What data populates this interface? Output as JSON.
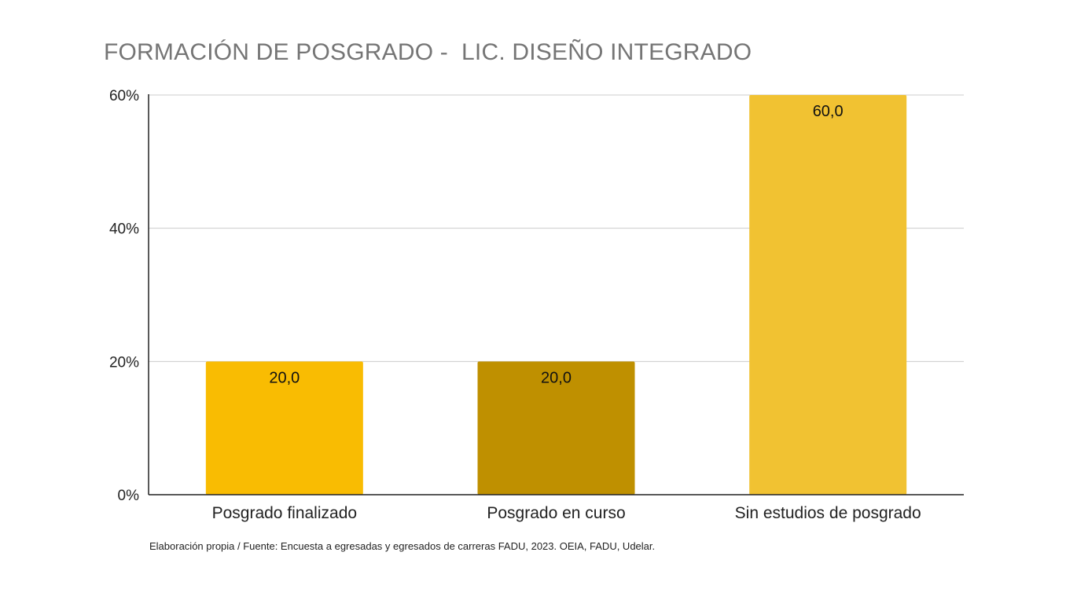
{
  "chart_data": {
    "type": "bar",
    "title": "FORMACIÓN DE POSGRADO -  LIC. DISEÑO INTEGRADO",
    "xlabel": "",
    "ylabel": "",
    "categories": [
      "Posgrado finalizado",
      "Posgrado en curso",
      "Sin estudios de posgrado"
    ],
    "values": [
      20.0,
      20.0,
      60.0
    ],
    "value_labels": [
      "20,0",
      "20,0",
      "60,0"
    ],
    "bar_colors": [
      "#F9BC02",
      "#BF9000",
      "#F1C232"
    ],
    "ylim": [
      0,
      60
    ],
    "y_ticks": [
      0,
      20,
      40,
      60
    ],
    "y_tick_labels": [
      "0%",
      "20%",
      "40%",
      "60%"
    ],
    "grid": true,
    "legend": "none",
    "source_note": "Elaboración propia / Fuente: Encuesta a egresadas y egresados de carreras FADU, 2023. OEIA, FADU, Udelar."
  }
}
